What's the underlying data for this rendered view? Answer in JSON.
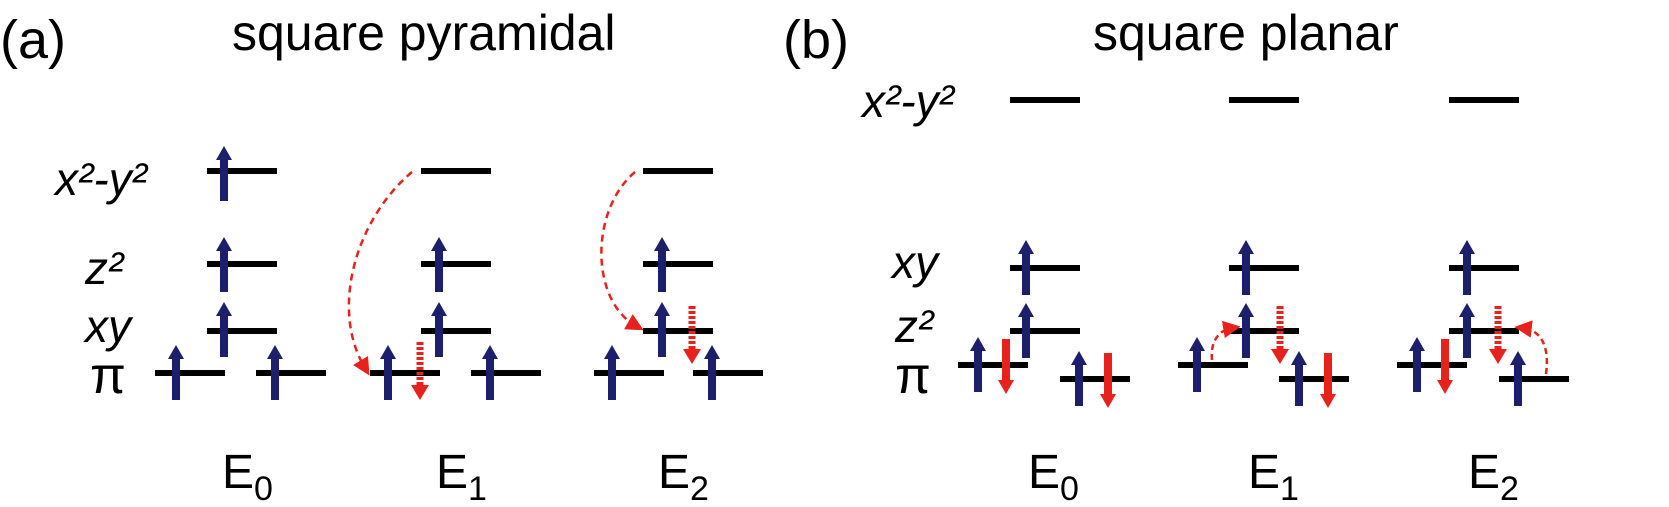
{
  "colors": {
    "up_arrow": "#1c1f6b",
    "down_arrow": "#e8211c",
    "line": "#000000"
  },
  "panel_a": {
    "panel_label": "(a)",
    "title": "square pyramidal",
    "orbitals": {
      "x2y2": "x²-y²",
      "z2": "z²",
      "xy": "xy",
      "pi": "π"
    },
    "configs": [
      {
        "name_main": "E",
        "name_sub": "0"
      },
      {
        "name_main": "E",
        "name_sub": "1"
      },
      {
        "name_main": "E",
        "name_sub": "2"
      }
    ]
  },
  "panel_b": {
    "panel_label": "(b)",
    "title": "square planar",
    "orbitals": {
      "x2y2": "x²-y²",
      "xy": "xy",
      "z2": "z²",
      "pi": "π"
    },
    "configs": [
      {
        "name_main": "E",
        "name_sub": "0"
      },
      {
        "name_main": "E",
        "name_sub": "1"
      },
      {
        "name_main": "E",
        "name_sub": "2"
      }
    ]
  }
}
